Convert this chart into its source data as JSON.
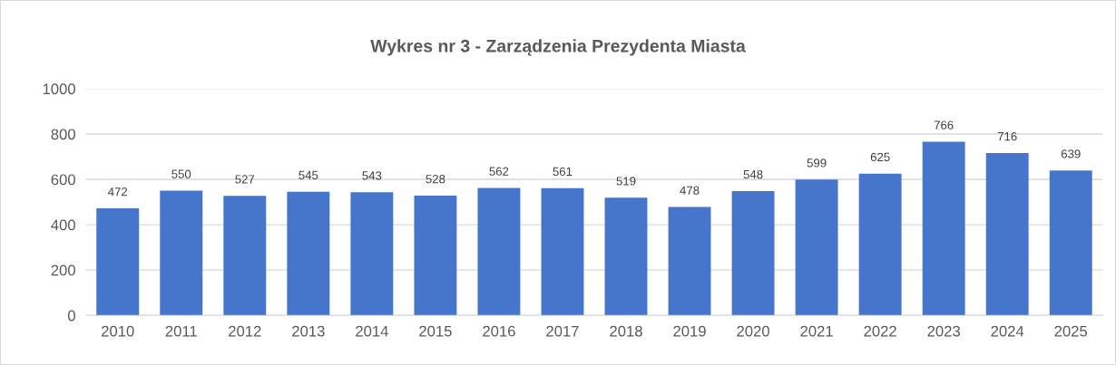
{
  "chart_data": {
    "type": "bar",
    "title": "Wykres nr 3 - Zarządzenia Prezydenta Miasta",
    "categories": [
      "2010",
      "2011",
      "2012",
      "2013",
      "2014",
      "2015",
      "2016",
      "2017",
      "2018",
      "2019",
      "2020",
      "2021",
      "2022",
      "2023",
      "2024",
      "2025"
    ],
    "values": [
      472,
      550,
      527,
      545,
      543,
      528,
      562,
      561,
      519,
      478,
      548,
      599,
      625,
      766,
      716,
      639
    ],
    "color": "#4676cc",
    "ylim": [
      0,
      1000
    ],
    "yticks": [
      0,
      200,
      400,
      600,
      800,
      1000
    ],
    "grid": "y",
    "data_labels": true,
    "legend": false
  }
}
